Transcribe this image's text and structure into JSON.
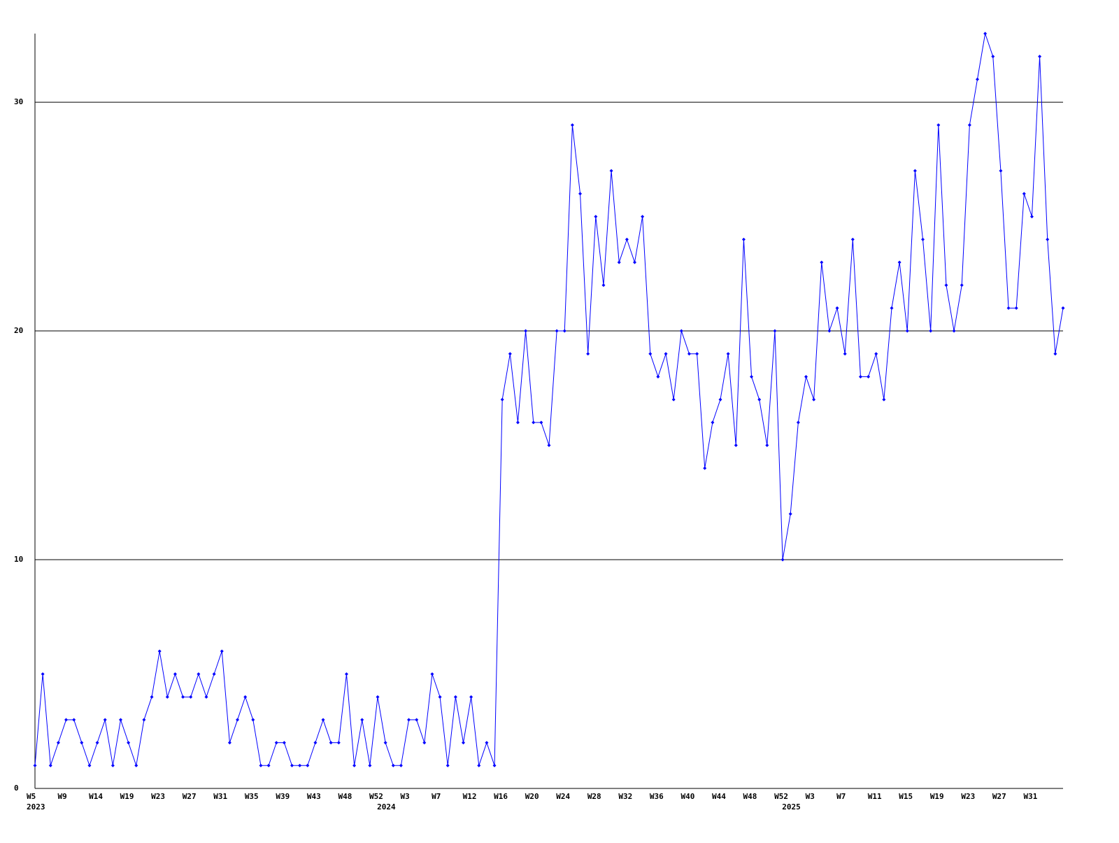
{
  "chart_data": {
    "type": "line",
    "categories": [
      "W5",
      null,
      null,
      null,
      "W9",
      null,
      null,
      null,
      "W14",
      null,
      null,
      null,
      "W19",
      null,
      null,
      null,
      "W23",
      null,
      null,
      null,
      "W27",
      null,
      null,
      null,
      "W31",
      null,
      null,
      null,
      "W35",
      null,
      null,
      null,
      "W39",
      null,
      null,
      null,
      "W43",
      null,
      null,
      null,
      "W48",
      null,
      null,
      null,
      "W52",
      null,
      null,
      null,
      "W3",
      null,
      null,
      null,
      "W7",
      null,
      null,
      null,
      "W12",
      null,
      null,
      null,
      "W16",
      null,
      null,
      null,
      "W20",
      null,
      null,
      null,
      "W24",
      null,
      null,
      null,
      "W28",
      null,
      null,
      null,
      "W32",
      null,
      null,
      null,
      "W36",
      null,
      null,
      null,
      "W40",
      null,
      null,
      null,
      "W44",
      null,
      null,
      null,
      "W48",
      null,
      null,
      null,
      "W52",
      null,
      null,
      null,
      "W3",
      null,
      null,
      null,
      "W7",
      null,
      null,
      null,
      "W11",
      null,
      null,
      null,
      "W15",
      null,
      null,
      null,
      "W19",
      null,
      null,
      null,
      "W23",
      null,
      null,
      null,
      "W27",
      null,
      null,
      null,
      "W31",
      null,
      null,
      null,
      null
    ],
    "x_years": [
      "2023",
      null,
      null,
      null,
      null,
      null,
      null,
      null,
      null,
      null,
      null,
      null,
      null,
      null,
      null,
      null,
      null,
      null,
      null,
      null,
      null,
      null,
      null,
      null,
      null,
      null,
      null,
      null,
      null,
      null,
      null,
      null,
      null,
      null,
      null,
      null,
      null,
      null,
      null,
      null,
      null,
      null,
      null,
      null,
      null,
      "2024",
      null,
      null,
      null,
      null,
      null,
      null,
      null,
      null,
      null,
      null,
      null,
      null,
      null,
      null,
      null,
      null,
      null,
      null,
      null,
      null,
      null,
      null,
      null,
      null,
      null,
      null,
      null,
      null,
      null,
      null,
      null,
      null,
      null,
      null,
      null,
      null,
      null,
      null,
      null,
      null,
      null,
      null,
      null,
      null,
      null,
      null,
      null,
      null,
      null,
      null,
      null,
      "2025",
      null,
      null,
      null,
      null,
      null,
      null,
      null,
      null,
      null,
      null,
      null,
      null,
      null,
      null,
      null,
      null,
      null,
      null,
      null,
      null,
      null,
      null,
      null,
      null,
      null,
      null,
      null,
      null,
      null,
      null,
      null,
      null,
      null,
      null,
      null
    ],
    "series": [
      {
        "color": "#0000ff",
        "values": [
          1,
          5,
          1,
          2,
          3,
          3,
          2,
          1,
          2,
          3,
          1,
          3,
          2,
          1,
          3,
          4,
          6,
          4,
          5,
          4,
          4,
          5,
          4,
          5,
          6,
          2,
          3,
          4,
          3,
          1,
          1,
          2,
          2,
          1,
          1,
          1,
          2,
          3,
          2,
          2,
          5,
          1,
          3,
          1,
          4,
          2,
          1,
          1,
          3,
          3,
          2,
          5,
          4,
          1,
          4,
          2,
          4,
          1,
          2,
          1,
          17,
          19,
          16,
          20,
          16,
          16,
          15,
          20,
          20,
          29,
          26,
          19,
          25,
          22,
          27,
          23,
          24,
          23,
          25,
          19,
          18,
          19,
          17,
          20,
          19,
          19,
          14,
          16,
          17,
          19,
          15,
          24,
          18,
          17,
          15,
          20,
          10,
          12,
          16,
          18,
          17,
          23,
          20,
          21,
          19,
          24,
          18,
          18,
          19,
          17,
          21,
          23,
          20,
          27,
          24,
          20,
          29,
          22,
          20,
          22,
          29,
          31,
          33,
          32,
          27,
          21,
          21,
          26,
          25,
          32,
          24,
          19,
          21
        ]
      }
    ],
    "ylim": [
      0,
      33
    ],
    "yticks": [
      0,
      10,
      20,
      30
    ],
    "grid": true
  }
}
